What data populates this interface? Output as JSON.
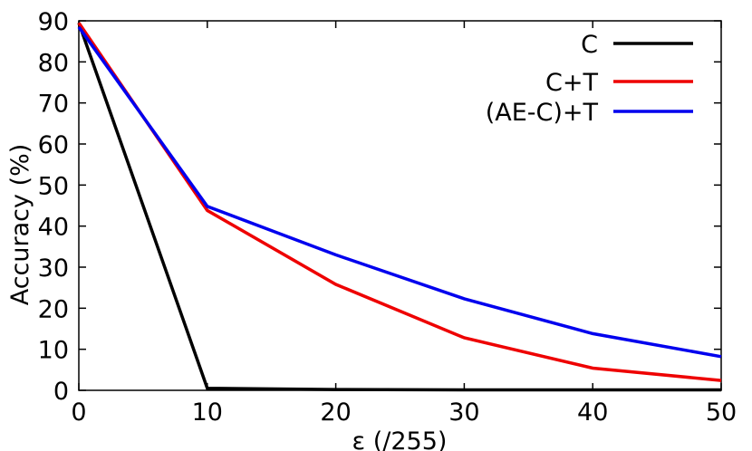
{
  "chart_data": {
    "type": "line",
    "xlabel": "ε (/255)",
    "ylabel": "Accuracy (%)",
    "xlim": [
      0,
      50
    ],
    "ylim": [
      0,
      90
    ],
    "x": [
      0,
      10,
      20,
      30,
      40,
      50
    ],
    "xticks": [
      "0",
      "10",
      "20",
      "30",
      "40",
      "50"
    ],
    "yticks": [
      "0",
      "10",
      "20",
      "30",
      "40",
      "50",
      "60",
      "70",
      "80",
      "90"
    ],
    "grid": false,
    "legend_position": "top-right",
    "series": [
      {
        "name": "C",
        "color": "#000000",
        "values": [
          89.5,
          0.5,
          0.2,
          0.1,
          0.1,
          0.1
        ]
      },
      {
        "name": "C+T",
        "color": "#ee0000",
        "values": [
          89.5,
          43.8,
          25.8,
          12.8,
          5.4,
          2.4
        ]
      },
      {
        "name": "(AE-C)+T",
        "color": "#0000ee",
        "values": [
          88.5,
          44.8,
          33.0,
          22.3,
          13.8,
          8.2
        ]
      }
    ]
  }
}
